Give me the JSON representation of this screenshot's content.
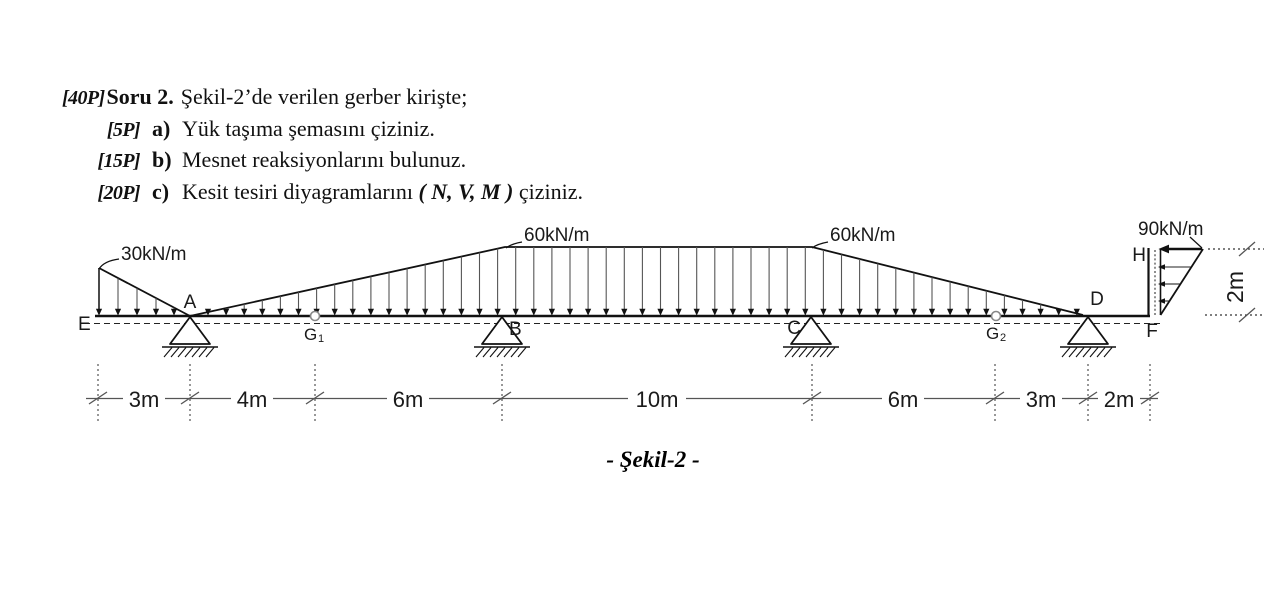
{
  "question": {
    "total_points": "[40P]",
    "label": "Soru 2.",
    "intro": "Şekil-2’de verilen gerber kirişte;",
    "items": [
      {
        "points": "[5P]",
        "letter": "a)",
        "text": "Yük taşıma şemasını çiziniz.",
        "math": "",
        "tail": ""
      },
      {
        "points": "[15P]",
        "letter": "b)",
        "text": "Mesnet reaksiyonlarını bulunuz.",
        "math": "",
        "tail": ""
      },
      {
        "points": "[20P]",
        "letter": "c)",
        "text": "Kesit tesiri diyagramlarını ",
        "math": "( N, V, M )",
        "tail": " çiziniz."
      }
    ]
  },
  "figure": {
    "caption": "- Şekil-2 -",
    "load_labels": {
      "left_triangle": "30kN/m",
      "mid_left": "60kN/m",
      "mid_right": "60kN/m",
      "right_triangle": "90kN/m"
    },
    "node_labels": {
      "E": "E",
      "A": "A",
      "B": "B",
      "C": "C",
      "D": "D",
      "F": "F",
      "H": "H"
    },
    "hinge_labels": {
      "g1": "G",
      "g1_sub": "1",
      "g2": "G",
      "g2_sub": "2"
    },
    "dim_labels": [
      "3m",
      "4m",
      "6m",
      "10m",
      "6m",
      "3m",
      "2m"
    ],
    "height_dim": "2m"
  }
}
